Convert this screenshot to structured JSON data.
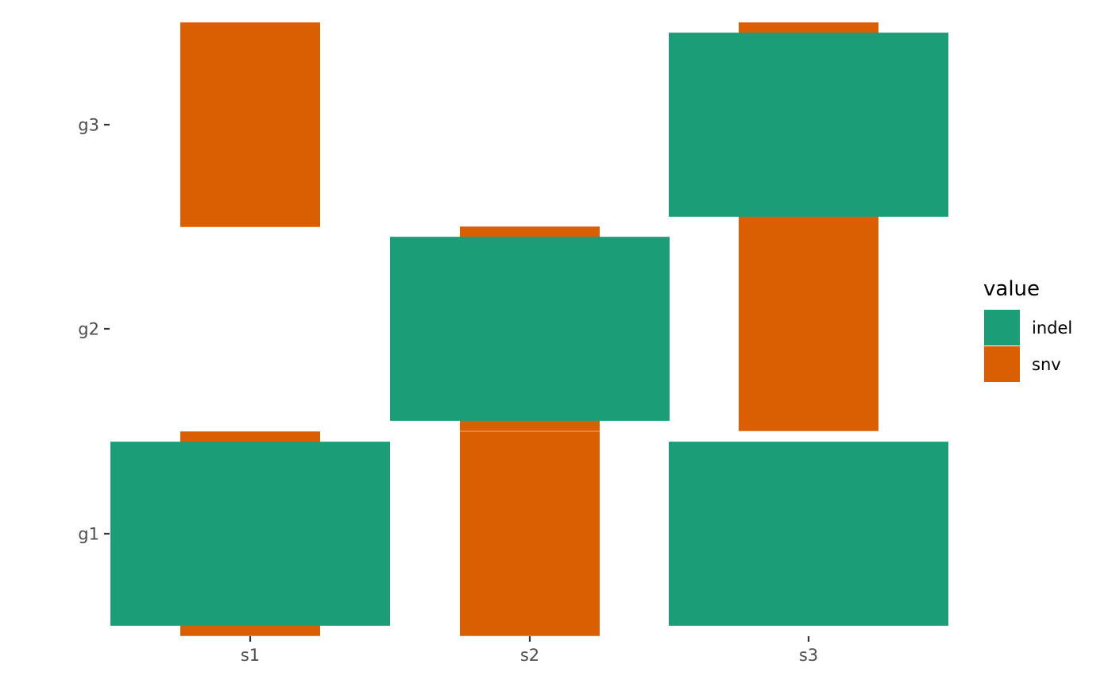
{
  "chart_data": {
    "type": "heatmap",
    "title": "",
    "xlabel": "",
    "ylabel": "",
    "x_categories": [
      "s1",
      "s2",
      "s3"
    ],
    "y_categories": [
      "g1",
      "g2",
      "g3"
    ],
    "grid": false,
    "legend": {
      "title": "value",
      "position": "right",
      "entries": [
        {
          "name": "indel",
          "color": "#1B9E77"
        },
        {
          "name": "snv",
          "color": "#D95F02"
        }
      ]
    },
    "cells": [
      {
        "x": "s1",
        "y": "g1",
        "value": "snv"
      },
      {
        "x": "s1",
        "y": "g3",
        "value": "snv"
      },
      {
        "x": "s2",
        "y": "g1",
        "value": "snv"
      },
      {
        "x": "s2",
        "y": "g2",
        "value": "snv"
      },
      {
        "x": "s3",
        "y": "g2",
        "value": "snv"
      },
      {
        "x": "s3",
        "y": "g3",
        "value": "snv"
      },
      {
        "x": "s1",
        "y": "g1",
        "value": "indel"
      },
      {
        "x": "s2",
        "y": "g2",
        "value": "indel"
      },
      {
        "x": "s3",
        "y": "g1",
        "value": "indel"
      },
      {
        "x": "s3",
        "y": "g3",
        "value": "indel"
      }
    ]
  }
}
